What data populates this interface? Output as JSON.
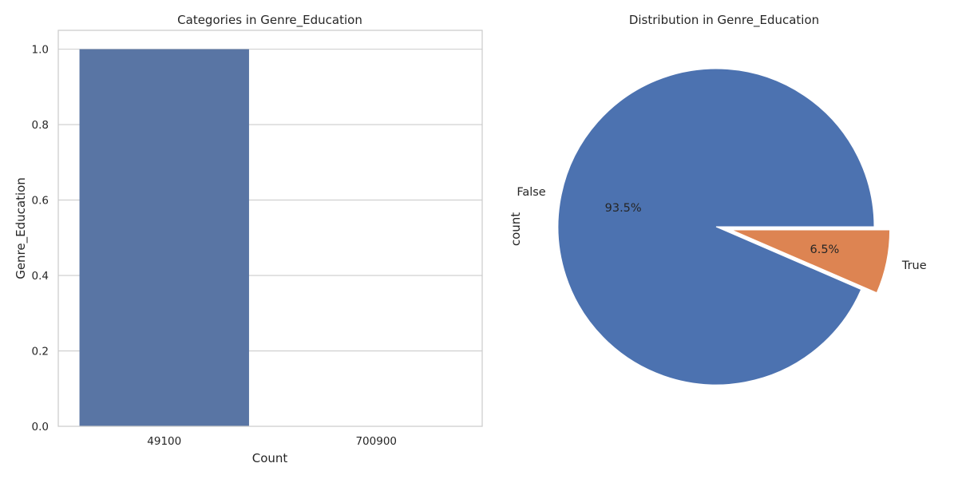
{
  "chart_data": [
    {
      "type": "bar",
      "title": "Categories in Genre_Education",
      "xlabel": "Count",
      "ylabel": "Genre_Education",
      "categories": [
        "49100",
        "700900"
      ],
      "values": [
        1.0,
        0.0
      ],
      "ylim": [
        0,
        1.05
      ],
      "yticks": [
        "0.0",
        "0.2",
        "0.4",
        "0.6",
        "0.8",
        "1.0"
      ],
      "grid": true,
      "colors": {
        "bar": "#5975a4",
        "grid": "#cccccc",
        "frame": "#cccccc"
      }
    },
    {
      "type": "pie",
      "title": "Distribution in Genre_Education",
      "ylabel": "count",
      "slices": [
        {
          "label": "False",
          "value": 93.5,
          "pct_label": "93.5%",
          "color": "#4c72b0",
          "explode": false
        },
        {
          "label": "True",
          "value": 6.5,
          "pct_label": "6.5%",
          "color": "#dd8452",
          "explode": true
        }
      ]
    }
  ]
}
